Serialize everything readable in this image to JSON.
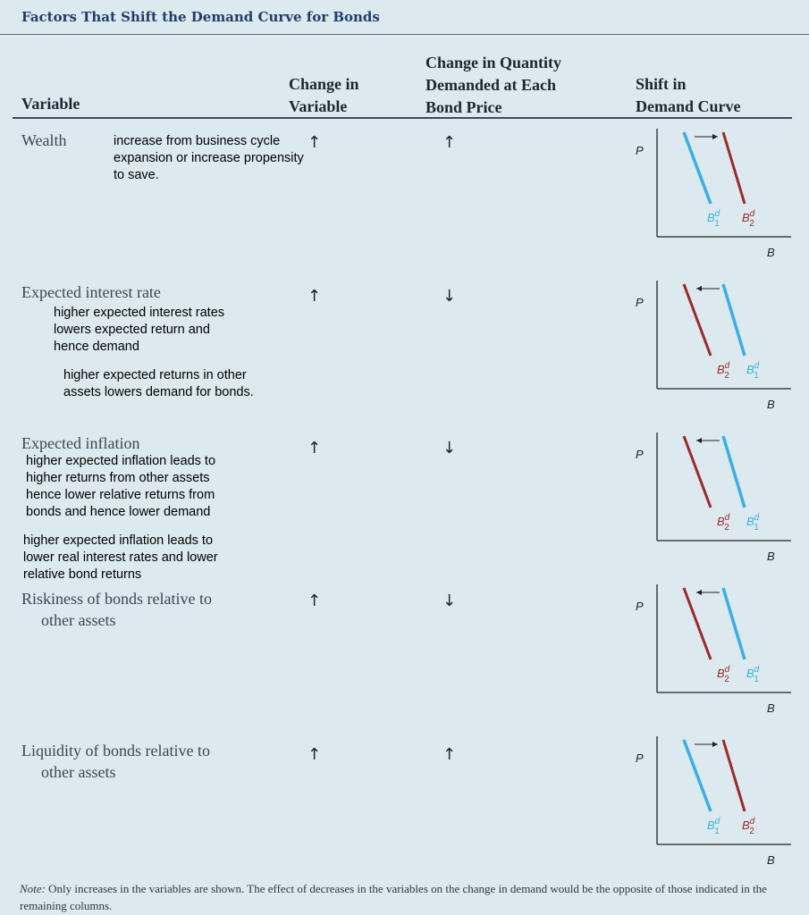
{
  "title": "Factors That Shift the Demand Curve for Bonds",
  "headers": {
    "variable": "Variable",
    "change_line1": "Change in",
    "change_line2": "Variable",
    "qty_line1": "Change in Quantity",
    "qty_line2": "Demanded at Each",
    "qty_line3": "Bond Price",
    "shift_line1": "Shift in",
    "shift_line2": "Demand Curve"
  },
  "arrow_up": "↑",
  "arrow_down": "↓",
  "rows": [
    {
      "name_line1": "Wealth",
      "name_line2": "",
      "change_in_variable": "up",
      "change_in_quantity": "up",
      "notes": [
        "increase from business cycle expansion or increase propensity to save."
      ],
      "shift": "right"
    },
    {
      "name_line1": "Expected interest rate",
      "name_line2": "",
      "change_in_variable": "up",
      "change_in_quantity": "down",
      "notes": [
        "higher expected interest rates lowers expected return and hence demand",
        "higher expected returns in other assets lowers demand for bonds."
      ],
      "shift": "left"
    },
    {
      "name_line1": "Expected inflation",
      "name_line2": "",
      "change_in_variable": "up",
      "change_in_quantity": "down",
      "notes": [
        "higher expected inflation leads to higher returns from other assets hence lower relative returns from bonds and hence lower demand",
        "higher expected inflation leads to lower real interest rates and lower relative bond returns"
      ],
      "shift": "left"
    },
    {
      "name_line1": "Riskiness of bonds relative to",
      "name_line2": "other assets",
      "change_in_variable": "up",
      "change_in_quantity": "down",
      "notes": [],
      "shift": "left"
    },
    {
      "name_line1": "Liquidity of bonds relative to",
      "name_line2": "other assets",
      "change_in_variable": "up",
      "change_in_quantity": "up",
      "notes": [],
      "shift": "right"
    }
  ],
  "graph_labels": {
    "y_axis": "P",
    "x_axis": "B",
    "curve_base": "B",
    "superscript": "d",
    "sub_original": "1",
    "sub_shifted": "2"
  },
  "footnote": {
    "lead": "Note:",
    "text": " Only increases in the variables are shown. The effect of decreases in the variables on the change in demand would be the opposite of those indicated in the remaining columns."
  },
  "colors": {
    "original_curve": "#3ab0e0",
    "shifted_curve": "#9c2a2a",
    "title": "#1f3f66",
    "background": "#dce9ef"
  }
}
